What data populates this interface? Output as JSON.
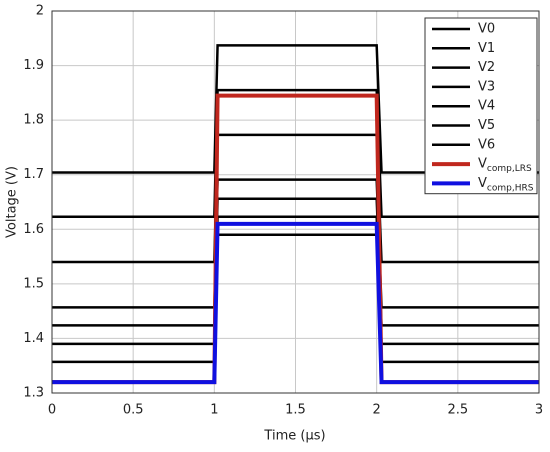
{
  "chart_data": {
    "type": "line",
    "xlabel": "Time (μs)",
    "ylabel": "Voltage (V)",
    "x": [
      0,
      1,
      1.02,
      2,
      2.03,
      3
    ],
    "series": [
      {
        "name": "V0",
        "color": "#000000",
        "values": [
          1.704,
          1.704,
          1.937,
          1.937,
          1.704,
          1.704
        ]
      },
      {
        "name": "V1",
        "color": "#000000",
        "values": [
          1.623,
          1.623,
          1.855,
          1.855,
          1.623,
          1.623
        ]
      },
      {
        "name": "V2",
        "color": "#000000",
        "values": [
          1.54,
          1.54,
          1.773,
          1.773,
          1.54,
          1.54
        ]
      },
      {
        "name": "V3",
        "color": "#000000",
        "values": [
          1.457,
          1.457,
          1.691,
          1.691,
          1.457,
          1.457
        ]
      },
      {
        "name": "V4",
        "color": "#000000",
        "values": [
          1.424,
          1.424,
          1.656,
          1.656,
          1.424,
          1.424
        ]
      },
      {
        "name": "V5",
        "color": "#000000",
        "values": [
          1.39,
          1.39,
          1.623,
          1.623,
          1.39,
          1.39
        ]
      },
      {
        "name": "V6",
        "color": "#000000",
        "values": [
          1.357,
          1.357,
          1.59,
          1.59,
          1.357,
          1.357
        ]
      },
      {
        "name": "Vcomp,LRS",
        "color": "#c0271e",
        "values": [
          1.32,
          1.32,
          1.845,
          1.845,
          1.32,
          1.32
        ]
      },
      {
        "name": "Vcomp,HRS",
        "color": "#1010e0",
        "values": [
          1.32,
          1.32,
          1.61,
          1.61,
          1.32,
          1.32
        ]
      }
    ],
    "xlim": [
      0,
      3
    ],
    "xticks": [
      0,
      0.5,
      1,
      1.5,
      2,
      2.5,
      3
    ],
    "ylim": [
      1.3,
      2
    ],
    "yticks": [
      1.3,
      1.4,
      1.5,
      1.6,
      1.7,
      1.8,
      1.9,
      2
    ],
    "grid": true,
    "legend": "upper right"
  }
}
